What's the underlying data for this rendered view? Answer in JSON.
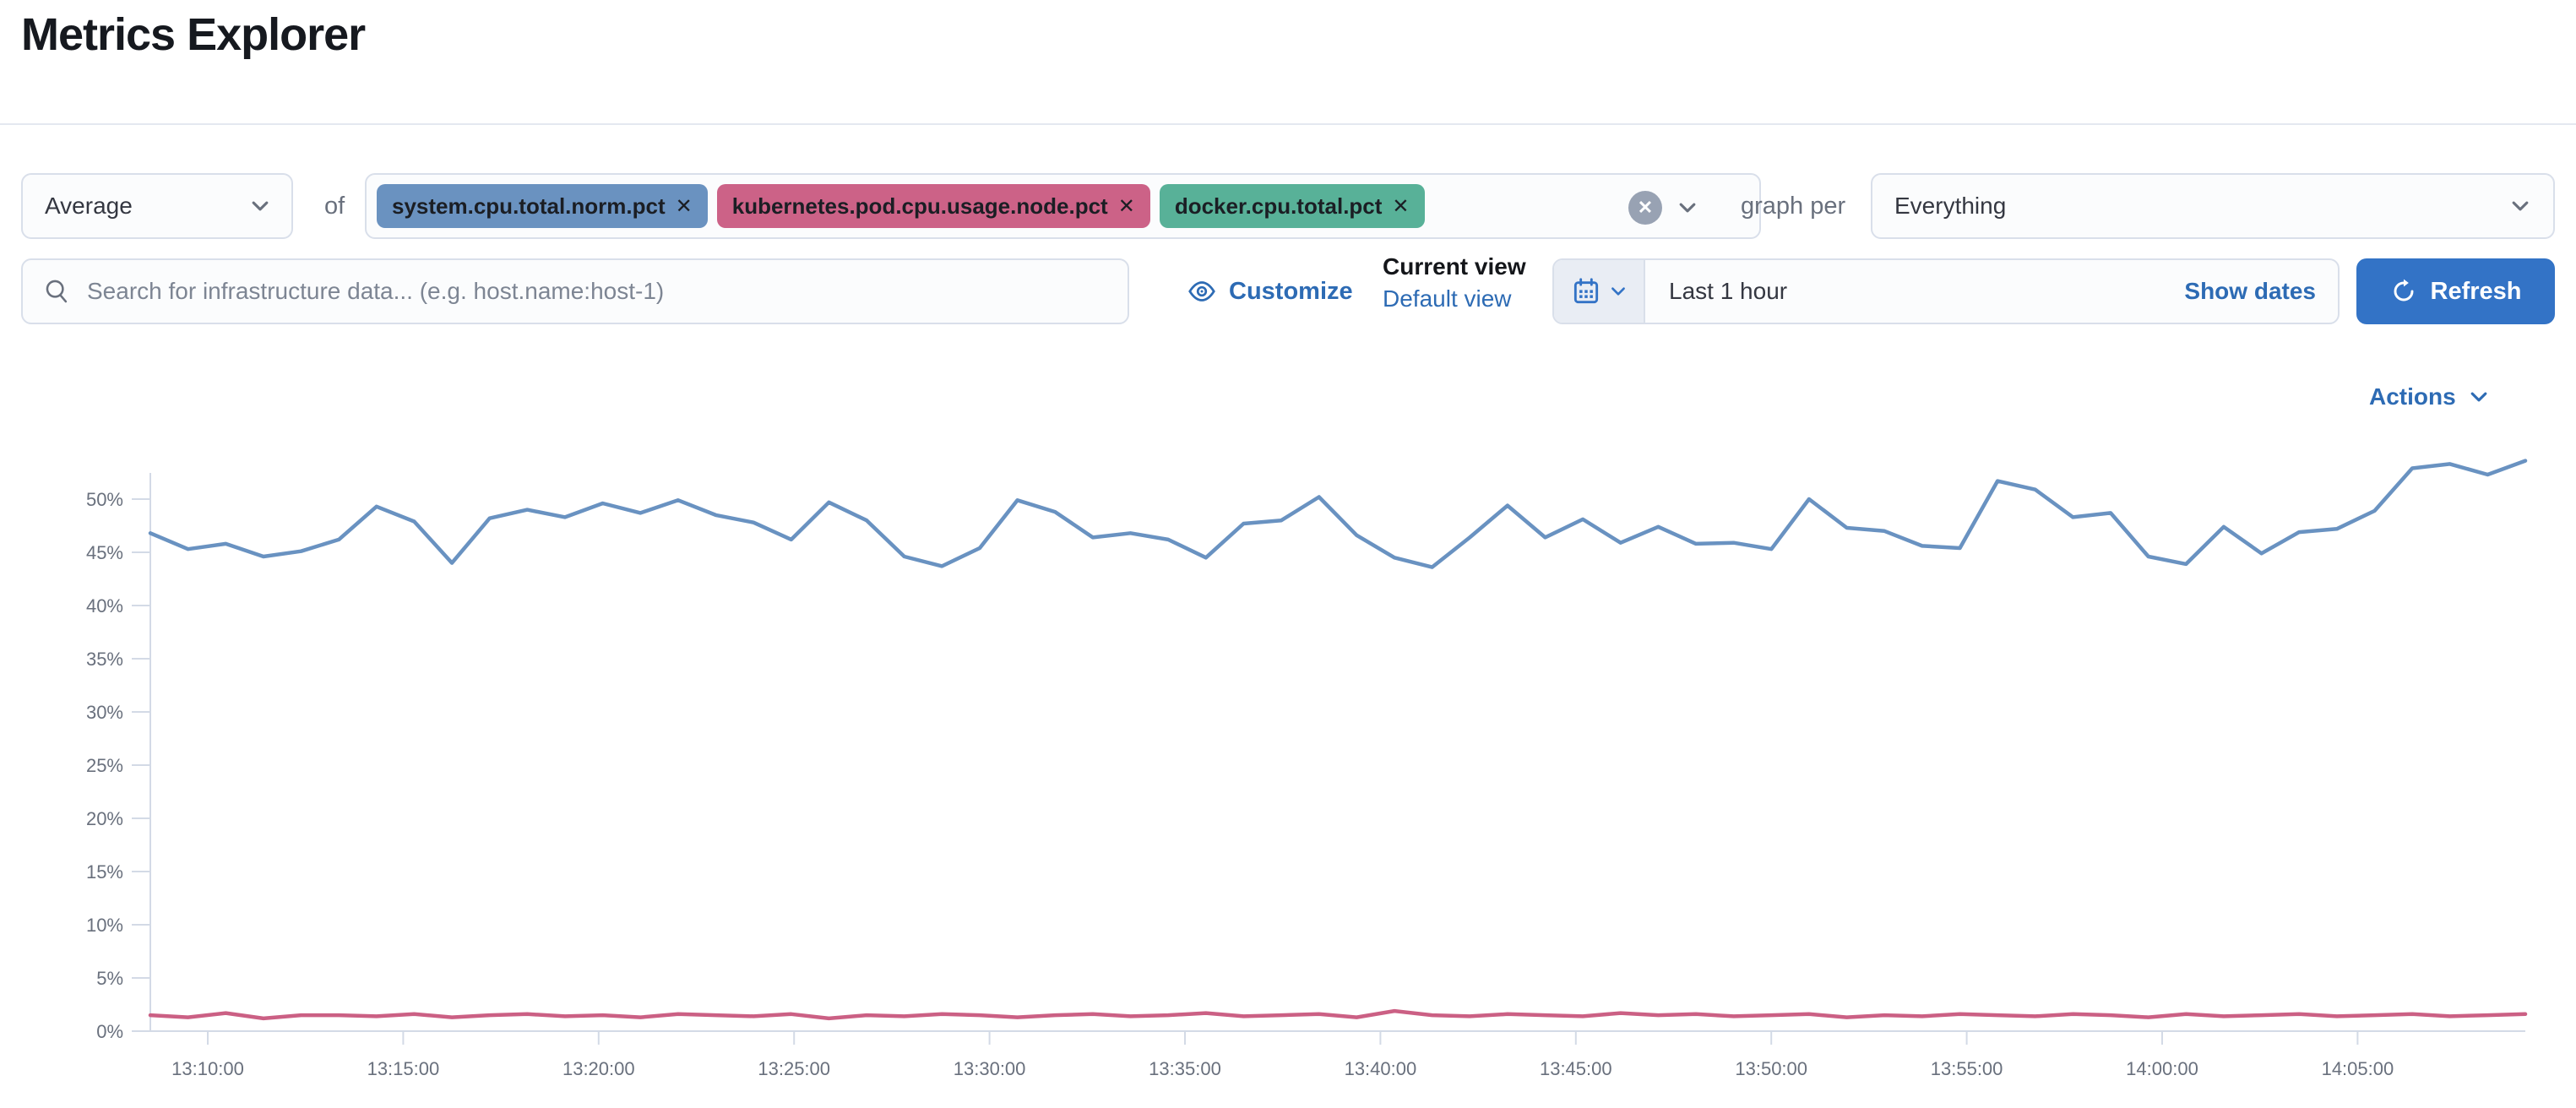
{
  "header": {
    "title": "Metrics Explorer"
  },
  "toolbar": {
    "aggregation": {
      "value": "Average"
    },
    "of_label": "of",
    "metrics": [
      {
        "label": "system.cpu.total.norm.pct",
        "color": "#6a92c0"
      },
      {
        "label": "kubernetes.pod.cpu.usage.node.pct",
        "color": "#cc6287"
      },
      {
        "label": "docker.cpu.total.pct",
        "color": "#58b198"
      }
    ],
    "graph_per_label": "graph per",
    "group_by": {
      "value": "Everything"
    }
  },
  "search": {
    "placeholder": "Search for infrastructure data... (e.g. host.name:host-1)"
  },
  "view_controls": {
    "customize_label": "Customize",
    "current_view_label": "Current view",
    "view_name": "Default view"
  },
  "time_picker": {
    "range_label": "Last 1 hour",
    "show_dates_label": "Show dates",
    "refresh_label": "Refresh"
  },
  "actions": {
    "label": "Actions"
  },
  "icons": {
    "remove": "✕",
    "clear": "✕"
  },
  "colors": {
    "link_blue": "#2d6bb4",
    "button_blue": "#3373c6",
    "series_blue": "#6992c1",
    "series_pink": "#cb6084",
    "axis_gray": "#d3dae6",
    "tick_text": "#69707d"
  },
  "chart_data": {
    "type": "line",
    "unit": "%",
    "grid": false,
    "legend": false,
    "ylim": [
      0,
      55
    ],
    "y_ticks": [
      "0%",
      "5%",
      "10%",
      "15%",
      "20%",
      "25%",
      "30%",
      "35%",
      "40%",
      "45%",
      "50%"
    ],
    "x_ticks": [
      "13:10:00",
      "13:15:00",
      "13:20:00",
      "13:25:00",
      "13:30:00",
      "13:35:00",
      "13:40:00",
      "13:45:00",
      "13:50:00",
      "13:55:00",
      "14:00:00",
      "14:05:00"
    ],
    "series": [
      {
        "name": "system.cpu.total.norm.pct (avg)",
        "color": "#6992c1",
        "values": [
          46.8,
          45.3,
          45.8,
          44.6,
          45.1,
          46.2,
          49.3,
          47.9,
          44.0,
          48.2,
          49.0,
          48.3,
          49.6,
          48.7,
          49.9,
          48.5,
          47.8,
          46.2,
          49.7,
          48.0,
          44.6,
          43.7,
          45.4,
          49.9,
          48.8,
          46.4,
          46.8,
          46.2,
          44.5,
          47.7,
          48.0,
          50.2,
          46.6,
          44.5,
          43.6,
          46.4,
          49.4,
          46.4,
          48.1,
          45.9,
          47.4,
          45.8,
          45.9,
          45.3,
          50.0,
          47.3,
          47.0,
          45.6,
          45.4,
          51.7,
          50.9,
          48.3,
          48.7,
          44.6,
          43.9,
          47.4,
          44.9,
          46.9,
          47.2,
          48.9,
          52.9,
          53.3,
          52.3,
          53.6
        ]
      },
      {
        "name": "kubernetes.pod.cpu.usage.node.pct (avg)",
        "color": "#cb6084",
        "values": [
          1.5,
          1.3,
          1.7,
          1.2,
          1.5,
          1.5,
          1.4,
          1.6,
          1.3,
          1.5,
          1.6,
          1.4,
          1.5,
          1.3,
          1.6,
          1.5,
          1.4,
          1.6,
          1.2,
          1.5,
          1.4,
          1.6,
          1.5,
          1.3,
          1.5,
          1.6,
          1.4,
          1.5,
          1.7,
          1.4,
          1.5,
          1.6,
          1.3,
          1.9,
          1.5,
          1.4,
          1.6,
          1.5,
          1.4,
          1.7,
          1.5,
          1.6,
          1.4,
          1.5,
          1.6,
          1.3,
          1.5,
          1.4,
          1.6,
          1.5,
          1.4,
          1.6,
          1.5,
          1.3,
          1.6,
          1.4,
          1.5,
          1.6,
          1.4,
          1.5,
          1.6,
          1.4,
          1.5,
          1.6
        ]
      }
    ]
  }
}
